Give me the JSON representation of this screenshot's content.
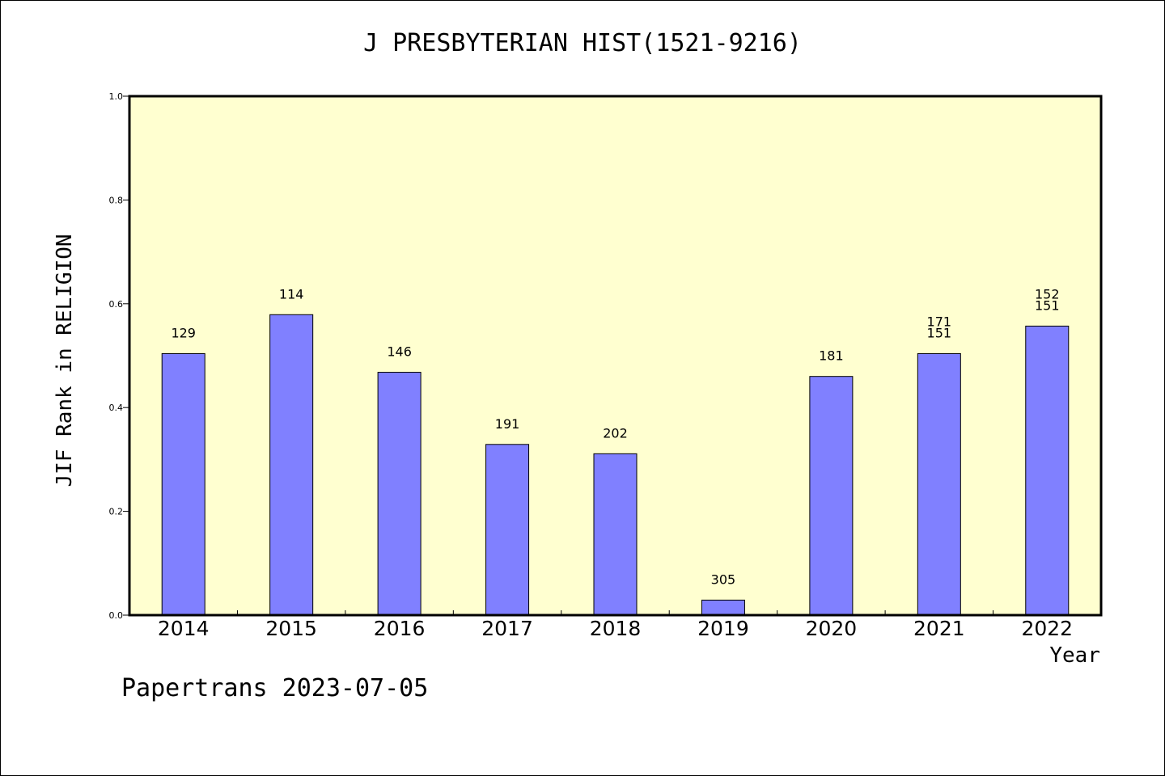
{
  "chart_data": {
    "type": "bar",
    "title": "J PRESBYTERIAN HIST(1521-9216)",
    "xlabel": "Year",
    "ylabel": "JIF Rank in RELIGION",
    "ylim": [
      0,
      1
    ],
    "yticks": [
      "0.0",
      "0.2",
      "0.4",
      "0.6",
      "0.8",
      "1.0"
    ],
    "categories": [
      "2014",
      "2015",
      "2016",
      "2017",
      "2018",
      "2019",
      "2020",
      "2021",
      "2022"
    ],
    "values": [
      0.504,
      0.579,
      0.468,
      0.329,
      0.311,
      0.029,
      0.46,
      0.504,
      0.557
    ],
    "labels": [
      [
        "129"
      ],
      [
        "114"
      ],
      [
        "146"
      ],
      [
        "191"
      ],
      [
        "202"
      ],
      [
        "305"
      ],
      [
        "181"
      ],
      [
        "171",
        "151"
      ],
      [
        "152",
        "151"
      ]
    ],
    "bar_color": "#8080ff",
    "background_color": "#ffffd0",
    "grid": false,
    "legend": "none"
  },
  "footer": "Papertrans 2023-07-05"
}
